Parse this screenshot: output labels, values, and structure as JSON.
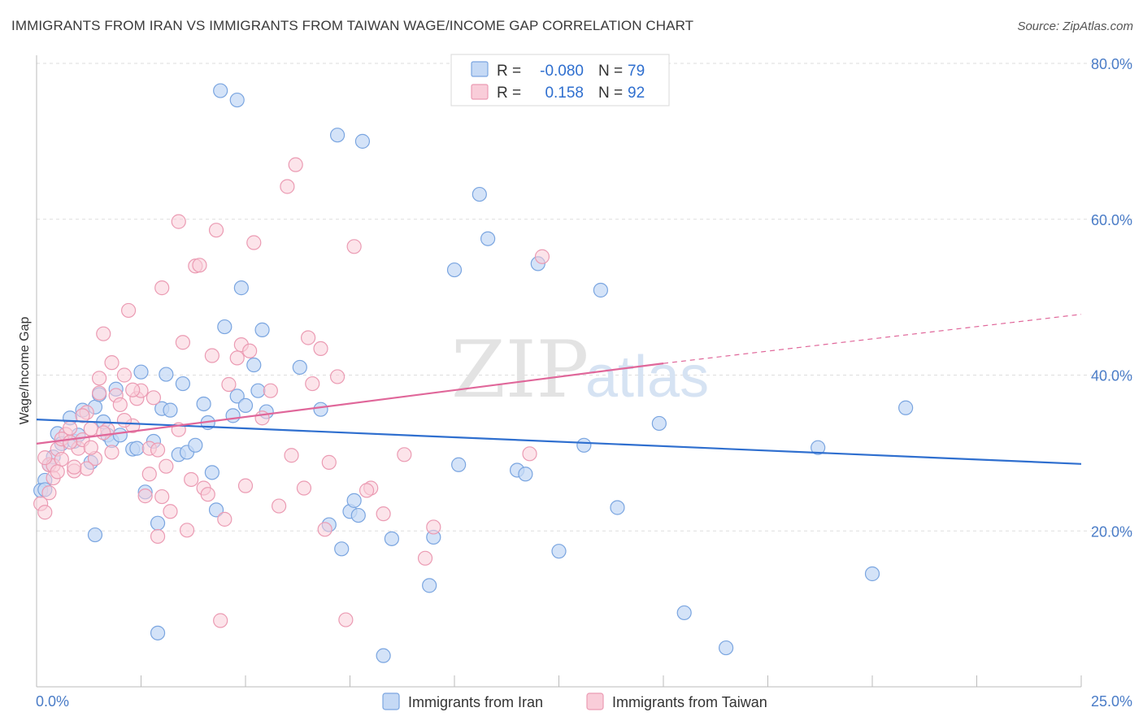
{
  "header": {
    "title": "IMMIGRANTS FROM IRAN VS IMMIGRANTS FROM TAIWAN WAGE/INCOME GAP CORRELATION CHART",
    "source": "Source: ZipAtlas.com"
  },
  "watermark": {
    "zip": "ZIP",
    "atlas": "atlas"
  },
  "stats_legend": {
    "r_label": "R =",
    "n_label": "N =",
    "iran": {
      "r": "-0.080",
      "n": "79"
    },
    "taiwan": {
      "r": "0.158",
      "n": "92"
    }
  },
  "colors": {
    "iran_fill": "#c5d9f5",
    "iran_stroke": "#7aa5e0",
    "iran_line": "#2f6fcf",
    "taiwan_fill": "#f9cdd9",
    "taiwan_stroke": "#eb9bb3",
    "taiwan_line": "#e0679a",
    "tick_text": "#4a7cc7",
    "grid": "#dddddd"
  },
  "chart_data": {
    "type": "scatter",
    "title": "IMMIGRANTS FROM IRAN VS IMMIGRANTS FROM TAIWAN WAGE/INCOME GAP CORRELATION CHART",
    "xlabel": "",
    "ylabel": "Wage/Income Gap",
    "xlim": [
      0,
      25
    ],
    "ylim": [
      0,
      80
    ],
    "x_tick_labels": [
      "0.0%",
      "25.0%"
    ],
    "y_ticks": [
      20,
      40,
      60,
      80
    ],
    "y_tick_labels": [
      "20.0%",
      "40.0%",
      "60.0%",
      "80.0%"
    ],
    "grid": true,
    "legend_position": "bottom",
    "series": [
      {
        "name": "Immigrants from Iran",
        "r": -0.08,
        "n": 79,
        "trend": {
          "x": [
            0,
            25
          ],
          "y": [
            34.3,
            28.6
          ]
        },
        "points": [
          [
            0.2,
            26.5
          ],
          [
            0.1,
            25.2
          ],
          [
            0.3,
            28.5
          ],
          [
            0.4,
            29.5
          ],
          [
            0.5,
            32.5
          ],
          [
            0.6,
            31.2
          ],
          [
            0.8,
            34.5
          ],
          [
            0.9,
            31.5
          ],
          [
            1.0,
            32.3
          ],
          [
            1.1,
            35.5
          ],
          [
            1.3,
            28.8
          ],
          [
            1.4,
            35.9
          ],
          [
            1.5,
            37.5
          ],
          [
            1.6,
            34.0
          ],
          [
            1.7,
            32.3
          ],
          [
            1.8,
            31.6
          ],
          [
            1.9,
            38.2
          ],
          [
            2.0,
            32.3
          ],
          [
            2.3,
            30.5
          ],
          [
            2.4,
            30.6
          ],
          [
            2.5,
            40.4
          ],
          [
            2.6,
            25.0
          ],
          [
            2.8,
            31.5
          ],
          [
            3.0,
            35.7
          ],
          [
            3.1,
            40.1
          ],
          [
            3.2,
            35.5
          ],
          [
            3.4,
            29.8
          ],
          [
            3.5,
            38.9
          ],
          [
            3.6,
            30.1
          ],
          [
            3.8,
            31.0
          ],
          [
            4.0,
            36.3
          ],
          [
            4.1,
            33.9
          ],
          [
            4.2,
            27.5
          ],
          [
            4.3,
            22.7
          ],
          [
            4.5,
            46.2
          ],
          [
            4.7,
            34.8
          ],
          [
            4.8,
            37.3
          ],
          [
            4.8,
            75.3
          ],
          [
            4.9,
            51.2
          ],
          [
            5.0,
            36.1
          ],
          [
            5.2,
            41.3
          ],
          [
            5.3,
            38.0
          ],
          [
            5.4,
            45.8
          ],
          [
            5.5,
            35.3
          ],
          [
            6.3,
            41.0
          ],
          [
            6.8,
            35.6
          ],
          [
            7.0,
            20.8
          ],
          [
            7.2,
            70.8
          ],
          [
            7.3,
            17.7
          ],
          [
            7.5,
            22.5
          ],
          [
            7.6,
            23.9
          ],
          [
            7.7,
            22.0
          ],
          [
            7.8,
            70.0
          ],
          [
            8.3,
            4.0
          ],
          [
            8.5,
            19.0
          ],
          [
            9.4,
            13.0
          ],
          [
            9.5,
            19.2
          ],
          [
            10.0,
            53.5
          ],
          [
            10.1,
            28.5
          ],
          [
            10.6,
            63.2
          ],
          [
            10.8,
            57.5
          ],
          [
            11.5,
            27.8
          ],
          [
            11.7,
            27.3
          ],
          [
            12.0,
            54.3
          ],
          [
            12.5,
            17.4
          ],
          [
            13.1,
            31.0
          ],
          [
            13.5,
            50.9
          ],
          [
            13.9,
            23.0
          ],
          [
            14.9,
            33.8
          ],
          [
            15.5,
            9.5
          ],
          [
            16.5,
            5.0
          ],
          [
            18.7,
            30.7
          ],
          [
            20.0,
            14.5
          ],
          [
            20.8,
            35.8
          ],
          [
            4.4,
            76.5
          ],
          [
            1.4,
            19.5
          ],
          [
            2.9,
            6.9
          ],
          [
            2.9,
            21.0
          ],
          [
            0.2,
            25.3
          ]
        ]
      },
      {
        "name": "Immigrants from Taiwan",
        "r": 0.158,
        "n": 92,
        "trend": {
          "x": [
            0,
            15
          ],
          "y": [
            31.2,
            41.5
          ]
        },
        "trend_extension": {
          "x": [
            15,
            25
          ],
          "y": [
            41.5,
            47.8
          ]
        },
        "points": [
          [
            0.1,
            23.5
          ],
          [
            0.2,
            22.4
          ],
          [
            0.3,
            28.5
          ],
          [
            0.4,
            28.4
          ],
          [
            0.5,
            30.5
          ],
          [
            0.6,
            29.2
          ],
          [
            0.7,
            32.4
          ],
          [
            0.8,
            33.2
          ],
          [
            0.9,
            27.7
          ],
          [
            1.0,
            30.6
          ],
          [
            1.1,
            31.7
          ],
          [
            1.2,
            35.2
          ],
          [
            1.3,
            33.1
          ],
          [
            1.4,
            29.3
          ],
          [
            1.5,
            37.7
          ],
          [
            1.6,
            45.3
          ],
          [
            1.7,
            33.0
          ],
          [
            1.8,
            30.1
          ],
          [
            1.9,
            37.4
          ],
          [
            2.0,
            36.2
          ],
          [
            2.1,
            40.0
          ],
          [
            2.2,
            48.3
          ],
          [
            2.3,
            33.5
          ],
          [
            2.4,
            37.0
          ],
          [
            2.5,
            38.0
          ],
          [
            2.6,
            24.5
          ],
          [
            2.7,
            27.3
          ],
          [
            2.8,
            37.1
          ],
          [
            2.9,
            19.3
          ],
          [
            3.0,
            24.4
          ],
          [
            3.1,
            28.3
          ],
          [
            3.2,
            22.5
          ],
          [
            3.4,
            59.7
          ],
          [
            3.5,
            44.2
          ],
          [
            3.6,
            20.1
          ],
          [
            3.8,
            54.0
          ],
          [
            4.0,
            25.5
          ],
          [
            4.2,
            42.5
          ],
          [
            4.3,
            58.6
          ],
          [
            4.4,
            8.5
          ],
          [
            4.5,
            21.5
          ],
          [
            4.6,
            38.8
          ],
          [
            4.8,
            42.2
          ],
          [
            4.9,
            43.9
          ],
          [
            5.0,
            25.8
          ],
          [
            5.2,
            57.0
          ],
          [
            5.4,
            34.5
          ],
          [
            5.6,
            38.0
          ],
          [
            5.8,
            23.2
          ],
          [
            6.0,
            64.2
          ],
          [
            6.2,
            67.0
          ],
          [
            6.4,
            25.5
          ],
          [
            6.5,
            44.8
          ],
          [
            6.6,
            38.9
          ],
          [
            6.8,
            43.4
          ],
          [
            6.9,
            20.2
          ],
          [
            7.0,
            28.8
          ],
          [
            7.2,
            39.8
          ],
          [
            7.4,
            8.6
          ],
          [
            7.6,
            56.5
          ],
          [
            8.0,
            25.5
          ],
          [
            8.3,
            22.2
          ],
          [
            8.8,
            29.8
          ],
          [
            9.3,
            16.5
          ],
          [
            9.5,
            20.5
          ],
          [
            11.8,
            29.9
          ],
          [
            12.1,
            55.2
          ],
          [
            1.2,
            28.0
          ],
          [
            2.3,
            38.1
          ],
          [
            3.0,
            51.2
          ],
          [
            3.4,
            33.0
          ],
          [
            0.6,
            31.8
          ],
          [
            1.3,
            30.7
          ],
          [
            2.1,
            34.2
          ],
          [
            0.4,
            26.8
          ],
          [
            0.9,
            28.2
          ],
          [
            0.5,
            27.6
          ],
          [
            1.8,
            41.6
          ],
          [
            2.7,
            30.6
          ],
          [
            3.9,
            54.1
          ],
          [
            4.1,
            24.7
          ],
          [
            1.5,
            39.6
          ],
          [
            0.3,
            24.9
          ],
          [
            0.8,
            31.4
          ],
          [
            1.6,
            32.6
          ],
          [
            2.9,
            30.4
          ],
          [
            3.7,
            26.6
          ],
          [
            5.1,
            43.1
          ],
          [
            6.1,
            29.7
          ],
          [
            7.9,
            25.2
          ],
          [
            0.2,
            29.4
          ],
          [
            1.1,
            34.8
          ]
        ]
      }
    ]
  },
  "bottom_legend": {
    "iran_label": "Immigrants from Iran",
    "taiwan_label": "Immigrants from Taiwan"
  }
}
